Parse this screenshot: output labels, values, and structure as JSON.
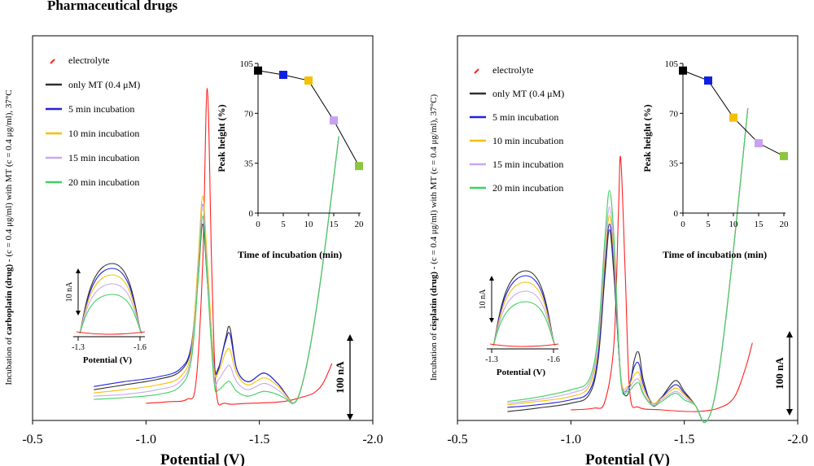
{
  "heading": "Pharmaceutical drugs",
  "colors": {
    "electrolyte": "#ff2020",
    "only_mt": "#303030",
    "min5": "#2222dd",
    "min10": "#f5c000",
    "min15": "#c8a8f0",
    "min20": "#40d060",
    "inset_sq_0": "#000000",
    "inset_sq_5": "#1020e0",
    "inset_sq_10": "#f5c000",
    "inset_sq_15": "#c9a0f0",
    "inset_sq_20": "#8cc63f",
    "inset_line": "#000000"
  },
  "chart_data": [
    {
      "type": "line",
      "title": "Incubation of carboplatin (drug) with MT",
      "xlabel": "Potential (V)",
      "ylabel_parts": [
        "Incubation of ",
        "carboplatin (drug)",
        " - (c = 0.4 μg/ml)  with MT (c = 0.4 μg/ml),  37°C"
      ],
      "xlim": [
        -0.5,
        -2.0
      ],
      "xticks": [
        "-0.5",
        "-1.0",
        "-1.5",
        "-2.0"
      ],
      "scale_bar": "100 nA",
      "legend": [
        "electrolyte",
        "only MT (0.4  μM)",
        " 5 min incubation",
        "10 min incubation",
        "15 min incubation",
        "20 min incubation"
      ],
      "series": [
        {
          "name": "electrolyte",
          "x": [
            -1.0,
            -1.1,
            -1.18,
            -1.22,
            -1.25,
            -1.27,
            -1.29,
            -1.31,
            -1.35,
            -1.45,
            -1.6,
            -1.68,
            -1.74,
            -1.78,
            -1.82
          ],
          "y": [
            -5,
            -3,
            0,
            20,
            170,
            390,
            165,
            10,
            -5,
            -5,
            -3,
            2,
            8,
            20,
            45
          ]
        },
        {
          "name": "only MT (0.4  μM)",
          "x": [
            -0.77,
            -0.9,
            -1.05,
            -1.15,
            -1.2,
            -1.23,
            -1.25,
            -1.27,
            -1.3,
            -1.32,
            -1.35,
            -1.37,
            -1.4,
            -1.45,
            -1.52,
            -1.58,
            -1.62,
            -1.65,
            -1.68,
            -1.72,
            -1.77,
            -1.82,
            -1.85
          ],
          "y": [
            12,
            18,
            25,
            35,
            65,
            150,
            220,
            150,
            42,
            38,
            75,
            90,
            38,
            22,
            33,
            20,
            5,
            -5,
            10,
            60,
            150,
            260,
            330
          ]
        },
        {
          "name": " 5 min incubation",
          "x": [
            -0.77,
            -0.9,
            -1.05,
            -1.15,
            -1.2,
            -1.23,
            -1.25,
            -1.27,
            -1.3,
            -1.32,
            -1.35,
            -1.37,
            -1.4,
            -1.45,
            -1.52,
            -1.58,
            -1.62,
            -1.65,
            -1.68,
            -1.72,
            -1.77,
            -1.82,
            -1.85
          ],
          "y": [
            16,
            22,
            28,
            38,
            68,
            165,
            245,
            165,
            45,
            40,
            72,
            82,
            38,
            22,
            33,
            20,
            5,
            -5,
            10,
            60,
            150,
            260,
            330
          ]
        },
        {
          "name": "10 min incubation",
          "x": [
            -0.77,
            -0.9,
            -1.05,
            -1.15,
            -1.2,
            -1.23,
            -1.25,
            -1.27,
            -1.3,
            -1.32,
            -1.35,
            -1.37,
            -1.4,
            -1.45,
            -1.52,
            -1.58,
            -1.62,
            -1.65,
            -1.68,
            -1.72,
            -1.77,
            -1.82,
            -1.85
          ],
          "y": [
            8,
            12,
            18,
            28,
            62,
            175,
            255,
            175,
            40,
            35,
            58,
            62,
            32,
            18,
            27,
            17,
            4,
            -5,
            10,
            60,
            150,
            260,
            330
          ]
        },
        {
          "name": "15 min incubation",
          "x": [
            -0.77,
            -0.9,
            -1.05,
            -1.15,
            -1.2,
            -1.23,
            -1.25,
            -1.27,
            -1.3,
            -1.32,
            -1.35,
            -1.37,
            -1.4,
            -1.45,
            -1.52,
            -1.58,
            -1.62,
            -1.65,
            -1.68,
            -1.72,
            -1.77,
            -1.82,
            -1.85
          ],
          "y": [
            4,
            6,
            12,
            22,
            55,
            160,
            245,
            160,
            30,
            25,
            38,
            42,
            22,
            12,
            20,
            12,
            2,
            -5,
            10,
            60,
            150,
            260,
            330
          ]
        },
        {
          "name": "20 min incubation",
          "x": [
            -0.77,
            -0.9,
            -1.05,
            -1.15,
            -1.2,
            -1.23,
            -1.25,
            -1.27,
            -1.3,
            -1.32,
            -1.35,
            -1.37,
            -1.4,
            -1.45,
            -1.52,
            -1.58,
            -1.62,
            -1.65,
            -1.68,
            -1.72,
            -1.77,
            -1.82,
            -1.85
          ],
          "y": [
            0,
            2,
            6,
            16,
            50,
            150,
            230,
            150,
            22,
            12,
            20,
            22,
            10,
            4,
            10,
            6,
            0,
            -5,
            10,
            60,
            150,
            260,
            330
          ]
        }
      ],
      "wave_inset": {
        "xlabel": "Potential (V)",
        "xticks": [
          "-1.3",
          "-1.6"
        ],
        "scale_bar": "10 nA"
      },
      "peak_inset": {
        "type": "line",
        "xlabel": "Time of incubation (min)",
        "ylabel": "Peak height (%)",
        "x": [
          0,
          5,
          10,
          15,
          20
        ],
        "y": [
          100,
          97,
          93,
          65,
          33
        ],
        "xticks": [
          "0",
          "5",
          "10",
          "15",
          "20"
        ],
        "yticks": [
          "0",
          "35",
          "70",
          "105"
        ],
        "ylim": [
          0,
          105
        ]
      }
    },
    {
      "type": "line",
      "title": "Incubation of cisplatin (drug) with MT",
      "xlabel": "Potential (V)",
      "ylabel_parts": [
        "Incubation of ",
        "cisplatin (drug)",
        " - (c = 0.4 μg/ml)  with MT (c = 0.4 μg/ml),  37°C)"
      ],
      "xlim": [
        -0.5,
        -2.0
      ],
      "xticks": [
        "-0.5",
        "-1.0",
        "-1.5",
        "-2.0"
      ],
      "scale_bar": "100 nA",
      "legend": [
        "electrolyte",
        "only MT (0.4  μM)",
        " 5 min incubation",
        "10 min incubation",
        "15 min incubation",
        "20 min incubation"
      ],
      "series": [
        {
          "name": "electrolyte",
          "x": [
            -1.0,
            -1.1,
            -1.15,
            -1.19,
            -1.21,
            -1.22,
            -1.24,
            -1.26,
            -1.3,
            -1.4,
            -1.55,
            -1.65,
            -1.72,
            -1.77,
            -1.8
          ],
          "y": [
            0,
            2,
            10,
            80,
            240,
            300,
            160,
            20,
            3,
            0,
            -2,
            2,
            15,
            50,
            80
          ]
        },
        {
          "name": "only MT (0.4  μM)",
          "x": [
            -0.72,
            -0.85,
            -1.0,
            -1.08,
            -1.12,
            -1.15,
            -1.17,
            -1.19,
            -1.22,
            -1.25,
            -1.28,
            -1.3,
            -1.32,
            -1.36,
            -1.4,
            -1.46,
            -1.5,
            -1.55,
            -1.59,
            -1.63,
            -1.67,
            -1.72,
            -1.78
          ],
          "y": [
            -2,
            2,
            8,
            18,
            60,
            160,
            215,
            160,
            40,
            18,
            60,
            68,
            35,
            5,
            15,
            35,
            22,
            5,
            -15,
            10,
            80,
            200,
            360
          ]
        },
        {
          "name": " 5 min incubation",
          "x": [
            -0.72,
            -0.85,
            -1.0,
            -1.08,
            -1.12,
            -1.15,
            -1.17,
            -1.19,
            -1.22,
            -1.25,
            -1.28,
            -1.3,
            -1.32,
            -1.36,
            -1.4,
            -1.46,
            -1.5,
            -1.55,
            -1.59,
            -1.63,
            -1.67,
            -1.72,
            -1.78
          ],
          "y": [
            3,
            6,
            12,
            22,
            65,
            170,
            222,
            170,
            38,
            25,
            52,
            55,
            30,
            8,
            15,
            30,
            20,
            5,
            -15,
            10,
            80,
            200,
            360
          ]
        },
        {
          "name": "10 min incubation",
          "x": [
            -0.72,
            -0.85,
            -1.0,
            -1.08,
            -1.12,
            -1.15,
            -1.17,
            -1.19,
            -1.22,
            -1.25,
            -1.28,
            -1.3,
            -1.32,
            -1.36,
            -1.4,
            -1.46,
            -1.5,
            -1.55,
            -1.59,
            -1.63,
            -1.67,
            -1.72,
            -1.78
          ],
          "y": [
            6,
            10,
            16,
            28,
            75,
            180,
            232,
            180,
            40,
            28,
            42,
            44,
            25,
            8,
            14,
            26,
            18,
            5,
            -15,
            10,
            80,
            200,
            360
          ]
        },
        {
          "name": "15 min incubation",
          "x": [
            -0.72,
            -0.85,
            -1.0,
            -1.08,
            -1.12,
            -1.15,
            -1.17,
            -1.19,
            -1.22,
            -1.25,
            -1.28,
            -1.3,
            -1.32,
            -1.36,
            -1.4,
            -1.46,
            -1.5,
            -1.55,
            -1.59,
            -1.63,
            -1.67,
            -1.72,
            -1.78
          ],
          "y": [
            8,
            12,
            20,
            32,
            80,
            190,
            242,
            190,
            38,
            25,
            35,
            36,
            20,
            6,
            12,
            22,
            15,
            5,
            -15,
            10,
            80,
            200,
            360
          ]
        },
        {
          "name": "20 min incubation",
          "x": [
            -0.72,
            -0.85,
            -1.0,
            -1.08,
            -1.12,
            -1.15,
            -1.17,
            -1.19,
            -1.22,
            -1.25,
            -1.28,
            -1.3,
            -1.32,
            -1.36,
            -1.4,
            -1.46,
            -1.5,
            -1.55,
            -1.59,
            -1.63,
            -1.67,
            -1.72,
            -1.78
          ],
          "y": [
            10,
            15,
            24,
            36,
            90,
            205,
            262,
            205,
            36,
            22,
            30,
            32,
            18,
            5,
            10,
            20,
            12,
            5,
            -15,
            10,
            80,
            200,
            360
          ]
        }
      ],
      "wave_inset": {
        "xlabel": "Potential (V)",
        "xticks": [
          "-1.3",
          "-1.6"
        ],
        "scale_bar": "10 nA"
      },
      "peak_inset": {
        "type": "line",
        "xlabel": "Time of incubation (min)",
        "ylabel": "Peak height (%)",
        "x": [
          0,
          5,
          10,
          15,
          20
        ],
        "y": [
          100,
          93,
          67,
          49,
          40
        ],
        "xticks": [
          "0",
          "5",
          "10",
          "15",
          "20"
        ],
        "yticks": [
          "0",
          "35",
          "70",
          "105"
        ],
        "ylim": [
          0,
          105
        ]
      }
    }
  ]
}
